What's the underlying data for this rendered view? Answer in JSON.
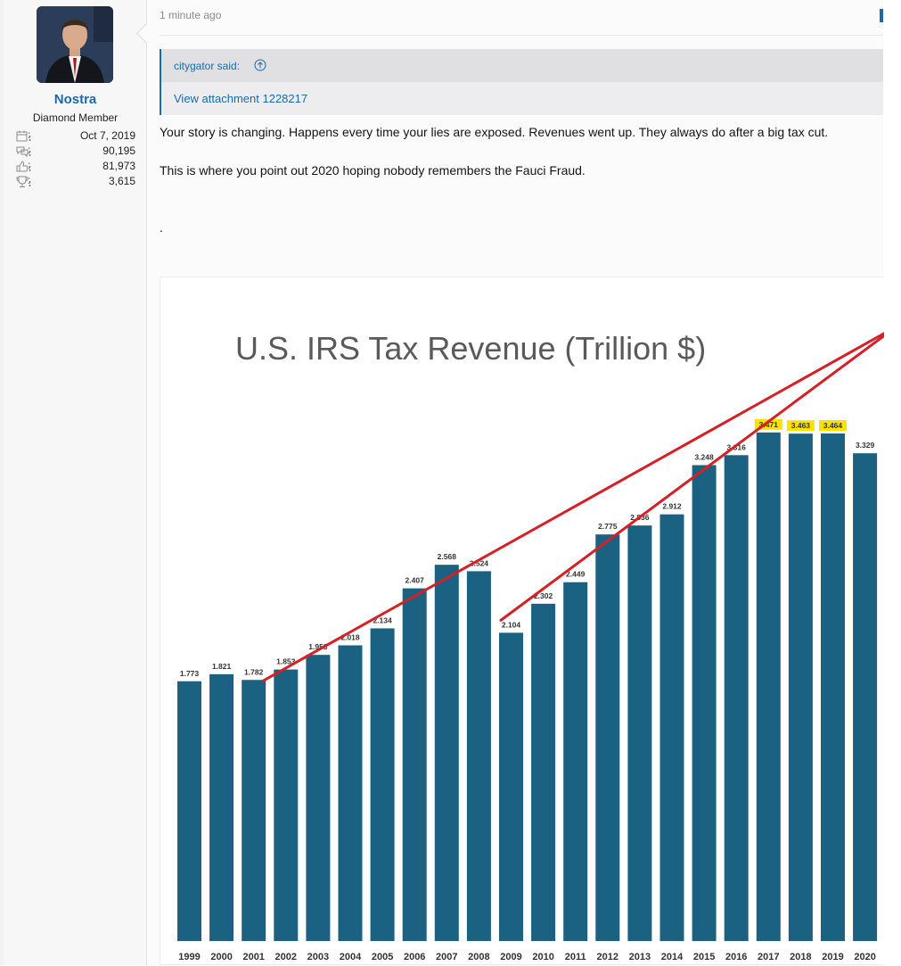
{
  "user": {
    "name": "Nostra",
    "title": "Diamond Member",
    "joined": "Oct 7, 2019",
    "messages": "90,195",
    "reactions": "81,973",
    "points": "3,615",
    "stat_suffix": ":"
  },
  "post": {
    "time": "1 minute ago",
    "quote_author": "citygator said:",
    "attachment": "View attachment 1228217",
    "lines": [
      "Your story is changing. Happens every time your lies are exposed. Revenues went up. They always do after a big tax cut.",
      "This is where you point out 2020 hoping nobody remembers the Fauci Fraud.",
      "."
    ]
  },
  "colors": {
    "accent": "#1a6aa8",
    "bar": "#1b6181",
    "highlight": "#ffe100",
    "annotation": "#d42027"
  },
  "chart_data": {
    "type": "bar",
    "title": "U.S. IRS Tax Revenue (Trillion $)",
    "categories": [
      "1999",
      "2000",
      "2001",
      "2002",
      "2003",
      "2004",
      "2005",
      "2006",
      "2007",
      "2008",
      "2009",
      "2010",
      "2011",
      "2012",
      "2013",
      "2014",
      "2015",
      "2016",
      "2017",
      "2018",
      "2019",
      "2020"
    ],
    "labels": [
      "1.773",
      "1.821",
      "1.782",
      "1.853",
      "1.953",
      "2.018",
      "2.134",
      "2.407",
      "2.568",
      "2.524",
      "2.104",
      "2.302",
      "2.449",
      "2.775",
      "2.836",
      "2.912",
      "3.248",
      "3.316",
      "3.471",
      "3.463",
      "3.464",
      "3.329"
    ],
    "values": [
      1.773,
      1.821,
      1.782,
      1.853,
      1.953,
      2.018,
      2.134,
      2.407,
      2.568,
      2.524,
      2.104,
      2.302,
      2.449,
      2.775,
      2.836,
      2.912,
      3.248,
      3.316,
      3.471,
      3.463,
      3.464,
      3.329
    ],
    "highlighted": [
      "2017",
      "2018",
      "2019"
    ],
    "ylim": [
      0,
      3.47
    ],
    "annotations": [
      {
        "type": "line",
        "from": {
          "x": "2001",
          "y": 1.78
        },
        "to": {
          "x": "off-chart",
          "y": "above-max"
        }
      },
      {
        "type": "line",
        "from": {
          "x": "2009",
          "y": 2.1
        },
        "to": {
          "x": "off-chart",
          "y": "above-max"
        }
      }
    ]
  }
}
